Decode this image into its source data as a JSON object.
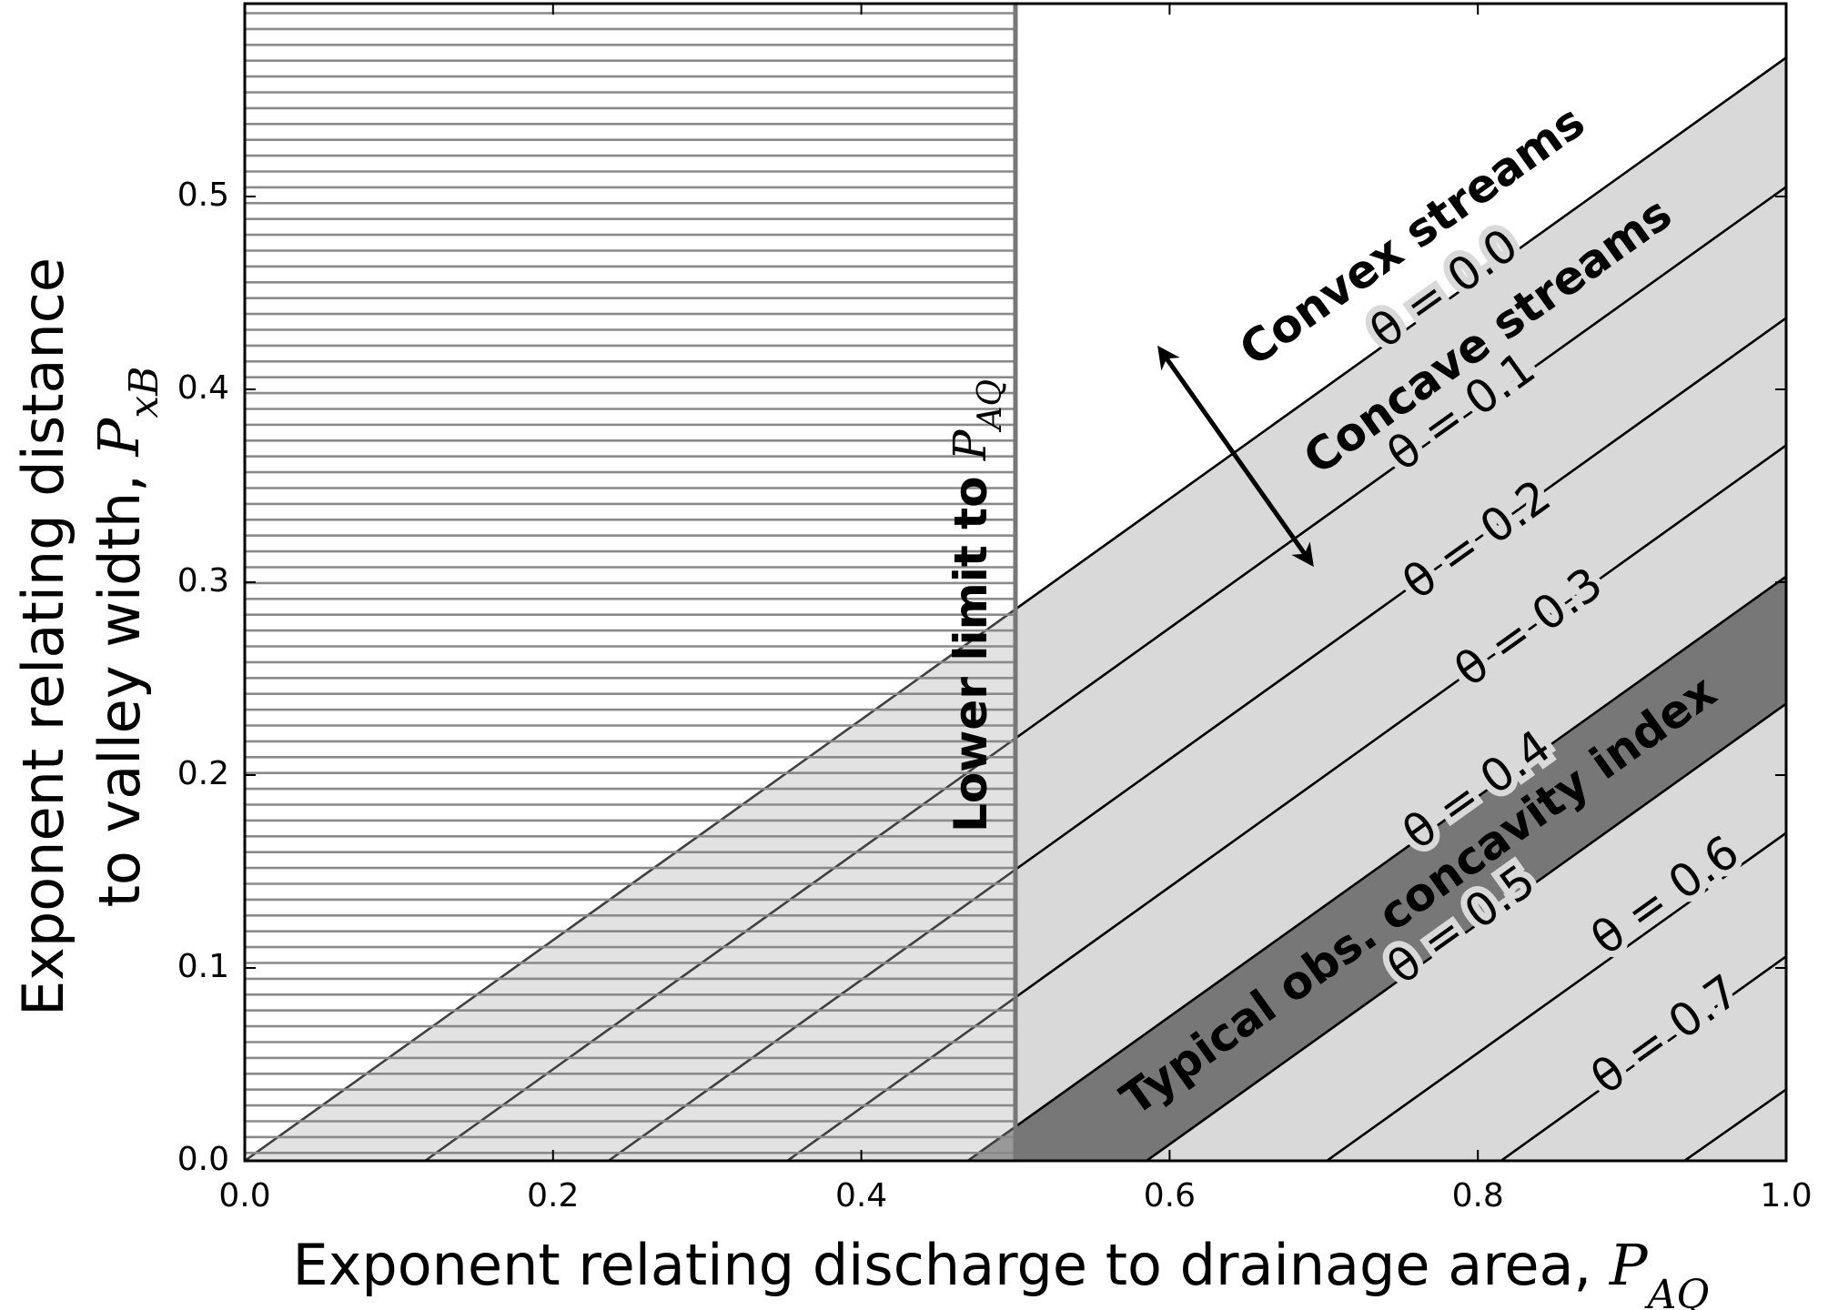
{
  "chart_data": {
    "type": "line",
    "xlabel": {
      "text": "Exponent relating discharge to drainage area, ",
      "symbol": "P",
      "subscript": "AQ"
    },
    "ylabel": {
      "line1": "Exponent relating distance",
      "line2": "to valley width, ",
      "symbol": "P",
      "subscript": "xB"
    },
    "xlim": [
      0,
      1
    ],
    "ylim": [
      0,
      0.6
    ],
    "xticks": [
      {
        "value": 0,
        "label": "0.0"
      },
      0.2,
      0.4,
      0.6,
      0.8,
      {
        "value": 1,
        "label": "1.0"
      }
    ],
    "yticks": [
      {
        "value": 0,
        "label": "0.0"
      },
      0.1,
      0.2,
      0.3,
      0.4,
      0.5
    ],
    "line_color": "#000000",
    "region_color": "#d9d9d9",
    "band_color": "#777777",
    "hatch_color": "#8a8a8a",
    "series": [
      {
        "name": "θ = 0.0",
        "x": [
          0,
          1
        ],
        "values": [
          0,
          0.572
        ]
      },
      {
        "name": "θ = 0.1",
        "x": [
          0.117,
          1
        ],
        "values": [
          0,
          0.505
        ]
      },
      {
        "name": "θ = 0.2",
        "x": [
          0.236,
          1
        ],
        "values": [
          0,
          0.437
        ]
      },
      {
        "name": "θ = 0.3",
        "x": [
          0.352,
          1
        ],
        "values": [
          0,
          0.371
        ]
      },
      {
        "name": "θ = 0.4",
        "x": [
          0.469,
          1
        ],
        "values": [
          0,
          0.303
        ]
      },
      {
        "name": "θ = 0.5",
        "x": [
          0.585,
          1
        ],
        "values": [
          0,
          0.237
        ]
      },
      {
        "name": "θ = 0.6",
        "x": [
          0.702,
          1
        ],
        "values": [
          0,
          0.17
        ]
      },
      {
        "name": "θ = 0.7",
        "x": [
          0.815,
          1
        ],
        "values": [
          0,
          0.106
        ]
      },
      {
        "x": [
          0.934,
          1
        ],
        "values": [
          0,
          0.037
        ]
      }
    ],
    "band": {
      "label": "Typical obs. concavity index",
      "lower_series": 5,
      "upper_series": 4
    },
    "annotations": [
      {
        "text": "Convex streams"
      },
      {
        "text": "Concave streams"
      }
    ],
    "vertical_line": {
      "x": 0.5,
      "label": "Lower limit to ",
      "symbol": "P",
      "subscript": "AQ"
    }
  }
}
